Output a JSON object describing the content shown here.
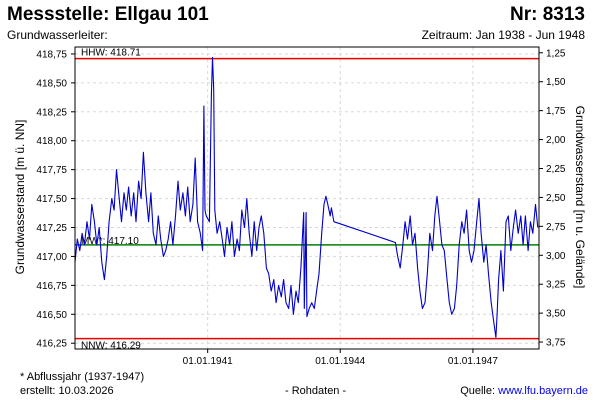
{
  "header": {
    "title": "Messstelle: Ellgau 101",
    "number": "Nr: 8313",
    "subtitle": "Grundwasserleiter:",
    "period": "Zeitraum: Jan 1938 - Jun 1948"
  },
  "footer": {
    "footnote": "* Abflussjahr (1937-1947)",
    "created": "erstellt:  10.03.2026",
    "data_type": "- Rohdaten -",
    "source_label": "Quelle: ",
    "source_link": "www.lfu.bayern.de"
  },
  "chart_data": {
    "type": "line",
    "title": "Messstelle: Ellgau 101",
    "ylabel": "Grundwasserstand [m ü. NN]",
    "ylabel_right": "Grundwasserstand [m u. Gelände]",
    "ylim": [
      416.2,
      418.81
    ],
    "ylim_right": [
      3.81,
      1.2
    ],
    "xlim": [
      "1938-01-01",
      "1948-06-30"
    ],
    "y_ticks": [
      "418,75",
      "418,50",
      "418,25",
      "418,00",
      "417,75",
      "417,50",
      "417,25",
      "417,00",
      "416,75",
      "416,50",
      "416,25"
    ],
    "y_tick_values": [
      418.75,
      418.5,
      418.25,
      418.0,
      417.75,
      417.5,
      417.25,
      417.0,
      416.75,
      416.5,
      416.25
    ],
    "y2_ticks": [
      "1,25",
      "1,50",
      "1,75",
      "2,00",
      "2,25",
      "2,50",
      "2,75",
      "3,00",
      "3,25",
      "3,50",
      "3,75"
    ],
    "y2_tick_values": [
      1.25,
      1.5,
      1.75,
      2.0,
      2.25,
      2.5,
      2.75,
      3.0,
      3.25,
      3.5,
      3.75
    ],
    "x_ticks": [
      "01.01.1941",
      "01.01.1944",
      "01.01.1947"
    ],
    "x_tick_dates": [
      "1941-01-01",
      "1944-01-01",
      "1947-01-01"
    ],
    "grid": true,
    "reference_lines": [
      {
        "label": "HHW: 418.71",
        "value": 418.71,
        "color": "#ee0000"
      },
      {
        "label": "MW*: 417.10",
        "value": 417.1,
        "color": "#008000"
      },
      {
        "label": "NNW: 416.29",
        "value": 416.29,
        "color": "#ee0000"
      }
    ],
    "series": [
      {
        "color": "#0000cc",
        "points": [
          [
            "1938-01-01",
            416.95
          ],
          [
            "1938-01-20",
            417.15
          ],
          [
            "1938-02-10",
            417.05
          ],
          [
            "1938-03-01",
            417.2
          ],
          [
            "1938-03-20",
            417.1
          ],
          [
            "1938-04-10",
            417.3
          ],
          [
            "1938-05-01",
            417.15
          ],
          [
            "1938-05-20",
            417.45
          ],
          [
            "1938-06-10",
            417.3
          ],
          [
            "1938-07-01",
            417.1
          ],
          [
            "1938-07-20",
            417.25
          ],
          [
            "1938-08-10",
            416.95
          ],
          [
            "1938-09-01",
            416.8
          ],
          [
            "1938-09-20",
            417.0
          ],
          [
            "1938-10-10",
            417.3
          ],
          [
            "1938-11-01",
            417.5
          ],
          [
            "1938-11-20",
            417.4
          ],
          [
            "1938-12-10",
            417.75
          ],
          [
            "1939-01-01",
            417.5
          ],
          [
            "1939-01-20",
            417.3
          ],
          [
            "1939-02-10",
            417.55
          ],
          [
            "1939-03-01",
            417.4
          ],
          [
            "1939-03-20",
            417.6
          ],
          [
            "1939-04-10",
            417.35
          ],
          [
            "1939-05-01",
            417.55
          ],
          [
            "1939-05-20",
            417.3
          ],
          [
            "1939-06-10",
            417.65
          ],
          [
            "1939-07-01",
            417.5
          ],
          [
            "1939-07-20",
            417.9
          ],
          [
            "1939-08-10",
            417.55
          ],
          [
            "1939-09-01",
            417.3
          ],
          [
            "1939-09-20",
            417.55
          ],
          [
            "1939-10-10",
            417.2
          ],
          [
            "1939-11-01",
            417.1
          ],
          [
            "1939-11-20",
            417.35
          ],
          [
            "1939-12-10",
            417.15
          ],
          [
            "1940-01-01",
            417.0
          ],
          [
            "1940-01-20",
            417.05
          ],
          [
            "1940-02-10",
            417.15
          ],
          [
            "1940-03-01",
            417.3
          ],
          [
            "1940-03-20",
            417.1
          ],
          [
            "1940-04-10",
            417.35
          ],
          [
            "1940-05-01",
            417.65
          ],
          [
            "1940-05-20",
            417.4
          ],
          [
            "1940-06-10",
            417.55
          ],
          [
            "1940-07-01",
            417.35
          ],
          [
            "1940-07-20",
            417.6
          ],
          [
            "1940-08-10",
            417.3
          ],
          [
            "1940-09-01",
            417.45
          ],
          [
            "1940-09-20",
            417.85
          ],
          [
            "1940-10-10",
            417.3
          ],
          [
            "1940-11-01",
            417.2
          ],
          [
            "1940-11-20",
            417.05
          ],
          [
            "1940-12-01",
            418.3
          ],
          [
            "1940-12-10",
            417.4
          ],
          [
            "1940-12-20",
            417.35
          ],
          [
            "1941-01-15",
            417.3
          ],
          [
            "1941-02-01",
            418.4
          ],
          [
            "1941-02-10",
            418.72
          ],
          [
            "1941-02-20",
            418.45
          ],
          [
            "1941-03-01",
            417.4
          ],
          [
            "1941-03-20",
            417.2
          ],
          [
            "1941-04-10",
            417.3
          ],
          [
            "1941-05-01",
            417.15
          ],
          [
            "1941-05-20",
            417.0
          ],
          [
            "1941-06-10",
            417.25
          ],
          [
            "1941-07-01",
            417.1
          ],
          [
            "1941-07-20",
            417.3
          ],
          [
            "1941-08-10",
            417.0
          ],
          [
            "1941-09-01",
            417.15
          ],
          [
            "1941-09-20",
            417.05
          ],
          [
            "1941-10-10",
            417.4
          ],
          [
            "1941-11-01",
            417.25
          ],
          [
            "1941-11-20",
            417.5
          ],
          [
            "1941-12-10",
            417.2
          ],
          [
            "1942-01-01",
            417.0
          ],
          [
            "1942-01-20",
            417.3
          ],
          [
            "1942-02-10",
            417.05
          ],
          [
            "1942-03-01",
            417.25
          ],
          [
            "1942-03-20",
            417.35
          ],
          [
            "1942-04-10",
            417.2
          ],
          [
            "1942-05-01",
            416.9
          ],
          [
            "1942-05-20",
            416.85
          ],
          [
            "1942-06-10",
            416.7
          ],
          [
            "1942-07-01",
            416.8
          ],
          [
            "1942-07-20",
            416.6
          ],
          [
            "1942-08-10",
            416.75
          ],
          [
            "1942-09-01",
            416.65
          ],
          [
            "1942-09-20",
            416.8
          ],
          [
            "1942-10-10",
            416.6
          ],
          [
            "1942-11-01",
            416.55
          ],
          [
            "1942-11-20",
            416.75
          ],
          [
            "1942-12-10",
            416.5
          ],
          [
            "1943-01-01",
            416.7
          ],
          [
            "1943-01-20",
            416.6
          ],
          [
            "1943-02-10",
            416.9
          ],
          [
            "1943-03-01",
            417.3
          ],
          [
            "1943-03-05",
            417.38
          ],
          [
            "1943-03-10",
            416.55
          ],
          [
            "1943-03-25",
            417.38
          ],
          [
            "1943-04-01",
            416.48
          ],
          [
            "1943-04-20",
            416.55
          ],
          [
            "1943-05-10",
            416.6
          ],
          [
            "1943-06-01",
            416.55
          ],
          [
            "1943-06-20",
            416.7
          ],
          [
            "1943-07-10",
            416.85
          ],
          [
            "1943-08-01",
            417.2
          ],
          [
            "1943-08-20",
            417.45
          ],
          [
            "1943-09-05",
            417.52
          ],
          [
            "1943-09-20",
            417.45
          ],
          [
            "1943-10-10",
            417.35
          ],
          [
            "1943-10-20",
            417.42
          ],
          [
            "1943-11-10",
            417.3
          ],
          [
            "1945-04-01",
            417.12
          ],
          [
            "1945-04-20",
            417.0
          ],
          [
            "1945-05-10",
            416.9
          ],
          [
            "1945-06-01",
            417.1
          ],
          [
            "1945-06-20",
            417.3
          ],
          [
            "1945-07-10",
            417.15
          ],
          [
            "1945-08-01",
            417.35
          ],
          [
            "1945-08-20",
            417.1
          ],
          [
            "1945-09-10",
            417.2
          ],
          [
            "1945-10-01",
            416.9
          ],
          [
            "1945-10-20",
            416.7
          ],
          [
            "1945-11-10",
            416.55
          ],
          [
            "1945-12-01",
            416.6
          ],
          [
            "1945-12-20",
            416.85
          ],
          [
            "1946-01-10",
            417.2
          ],
          [
            "1946-02-01",
            417.05
          ],
          [
            "1946-02-20",
            417.35
          ],
          [
            "1946-03-10",
            417.52
          ],
          [
            "1946-04-01",
            417.3
          ],
          [
            "1946-04-20",
            417.1
          ],
          [
            "1946-05-10",
            417.05
          ],
          [
            "1946-06-01",
            416.8
          ],
          [
            "1946-06-20",
            416.6
          ],
          [
            "1946-07-10",
            416.5
          ],
          [
            "1946-08-01",
            416.55
          ],
          [
            "1946-08-20",
            416.75
          ],
          [
            "1946-09-10",
            417.1
          ],
          [
            "1946-10-01",
            417.3
          ],
          [
            "1946-10-20",
            417.2
          ],
          [
            "1946-11-10",
            417.4
          ],
          [
            "1946-12-01",
            417.05
          ],
          [
            "1946-12-20",
            416.95
          ],
          [
            "1947-01-10",
            417.05
          ],
          [
            "1947-02-01",
            417.3
          ],
          [
            "1947-02-20",
            417.5
          ],
          [
            "1947-03-10",
            417.2
          ],
          [
            "1947-04-01",
            416.95
          ],
          [
            "1947-04-20",
            417.1
          ],
          [
            "1947-05-10",
            416.85
          ],
          [
            "1947-06-01",
            416.6
          ],
          [
            "1947-06-20",
            416.45
          ],
          [
            "1947-07-10",
            416.3
          ],
          [
            "1947-07-20",
            416.5
          ],
          [
            "1947-08-01",
            416.8
          ],
          [
            "1947-08-20",
            417.05
          ],
          [
            "1947-09-10",
            416.7
          ],
          [
            "1947-10-01",
            417.3
          ],
          [
            "1947-10-20",
            417.35
          ],
          [
            "1947-11-10",
            417.05
          ],
          [
            "1947-12-01",
            417.25
          ],
          [
            "1947-12-20",
            417.4
          ],
          [
            "1948-01-10",
            417.2
          ],
          [
            "1948-02-01",
            417.35
          ],
          [
            "1948-02-20",
            417.1
          ],
          [
            "1948-03-10",
            417.35
          ],
          [
            "1948-04-01",
            417.05
          ],
          [
            "1948-04-20",
            417.3
          ],
          [
            "1948-05-10",
            417.2
          ],
          [
            "1948-06-01",
            417.45
          ],
          [
            "1948-06-20",
            417.25
          ]
        ]
      }
    ]
  }
}
